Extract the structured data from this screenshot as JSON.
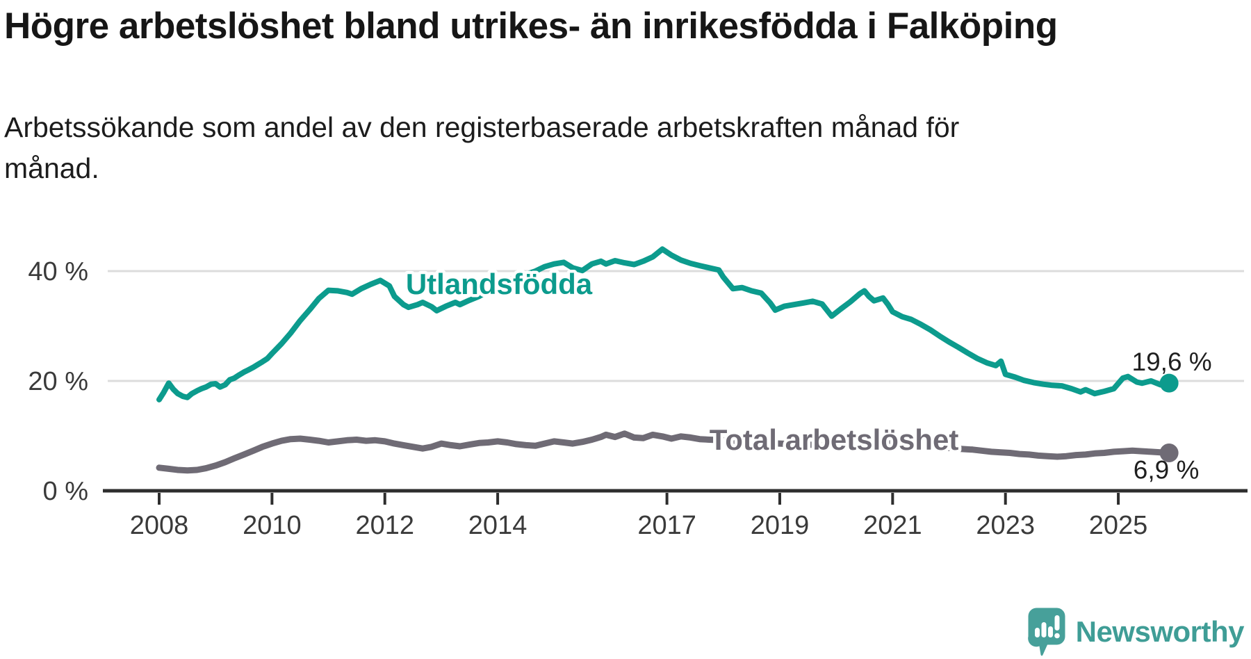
{
  "chart_data": {
    "type": "line",
    "title": "Högre arbetslöshet bland utrikes- än inrikesfödda i Falköping",
    "subtitle": "Arbetssökande som andel av den registerbaserade arbetskraften månad för månad.",
    "grid": "horizontal",
    "legend_position": "inline-labels",
    "x_axis": {
      "ticks": [
        2008,
        2010,
        2012,
        2014,
        2017,
        2019,
        2021,
        2023,
        2025
      ],
      "labels": [
        "2008",
        "2010",
        "2012",
        "2014",
        "2017",
        "2019",
        "2021",
        "2023",
        "2025"
      ],
      "range": [
        2007.5,
        2026.3
      ]
    },
    "y_axis": {
      "ticks": [
        0,
        20,
        40
      ],
      "labels": [
        "0 %",
        "20 %",
        "40 %"
      ],
      "unit": "%",
      "range": [
        0,
        47
      ]
    },
    "series": [
      {
        "name": "Utlandsfödda",
        "color": "#0c9b8d",
        "end_label": "19,6 %",
        "last_value": 19.6,
        "points": [
          [
            2008.0,
            16.6
          ],
          [
            2008.08,
            17.9
          ],
          [
            2008.17,
            19.6
          ],
          [
            2008.25,
            18.5
          ],
          [
            2008.33,
            17.7
          ],
          [
            2008.42,
            17.2
          ],
          [
            2008.5,
            17.0
          ],
          [
            2008.58,
            17.7
          ],
          [
            2008.67,
            18.2
          ],
          [
            2008.75,
            18.6
          ],
          [
            2008.83,
            18.9
          ],
          [
            2008.92,
            19.4
          ],
          [
            2009.0,
            19.5
          ],
          [
            2009.08,
            18.9
          ],
          [
            2009.17,
            19.3
          ],
          [
            2009.25,
            20.2
          ],
          [
            2009.33,
            20.5
          ],
          [
            2009.42,
            21.1
          ],
          [
            2009.5,
            21.6
          ],
          [
            2009.58,
            22.0
          ],
          [
            2009.67,
            22.5
          ],
          [
            2009.75,
            23.0
          ],
          [
            2009.83,
            23.5
          ],
          [
            2009.92,
            24.1
          ],
          [
            2010.0,
            25.0
          ],
          [
            2010.17,
            26.8
          ],
          [
            2010.33,
            28.7
          ],
          [
            2010.5,
            31.0
          ],
          [
            2010.67,
            33.0
          ],
          [
            2010.83,
            35.0
          ],
          [
            2011.0,
            36.5
          ],
          [
            2011.17,
            36.4
          ],
          [
            2011.33,
            36.1
          ],
          [
            2011.42,
            35.8
          ],
          [
            2011.58,
            36.8
          ],
          [
            2011.75,
            37.6
          ],
          [
            2011.92,
            38.3
          ],
          [
            2012.08,
            37.3
          ],
          [
            2012.17,
            35.4
          ],
          [
            2012.33,
            33.9
          ],
          [
            2012.42,
            33.4
          ],
          [
            2012.58,
            33.9
          ],
          [
            2012.67,
            34.3
          ],
          [
            2012.83,
            33.5
          ],
          [
            2012.92,
            32.8
          ],
          [
            2013.08,
            33.6
          ],
          [
            2013.25,
            34.3
          ],
          [
            2013.33,
            33.9
          ],
          [
            2013.5,
            34.7
          ],
          [
            2013.67,
            35.4
          ],
          [
            2013.83,
            36.4
          ],
          [
            2014.0,
            37.4
          ],
          [
            2014.17,
            38.2
          ],
          [
            2014.33,
            38.9
          ],
          [
            2014.5,
            39.4
          ],
          [
            2014.67,
            40.0
          ],
          [
            2014.83,
            40.8
          ],
          [
            2015.0,
            41.3
          ],
          [
            2015.17,
            41.6
          ],
          [
            2015.33,
            40.6
          ],
          [
            2015.5,
            40.1
          ],
          [
            2015.67,
            41.3
          ],
          [
            2015.83,
            41.8
          ],
          [
            2015.92,
            41.3
          ],
          [
            2016.08,
            41.9
          ],
          [
            2016.25,
            41.5
          ],
          [
            2016.42,
            41.2
          ],
          [
            2016.58,
            41.8
          ],
          [
            2016.75,
            42.6
          ],
          [
            2016.92,
            44.0
          ],
          [
            2017.08,
            42.9
          ],
          [
            2017.25,
            42.0
          ],
          [
            2017.42,
            41.4
          ],
          [
            2017.58,
            41.0
          ],
          [
            2017.75,
            40.6
          ],
          [
            2017.92,
            40.2
          ],
          [
            2018.0,
            38.9
          ],
          [
            2018.17,
            36.8
          ],
          [
            2018.33,
            37.0
          ],
          [
            2018.5,
            36.4
          ],
          [
            2018.67,
            36.0
          ],
          [
            2018.83,
            34.2
          ],
          [
            2018.92,
            32.9
          ],
          [
            2019.08,
            33.6
          ],
          [
            2019.25,
            33.9
          ],
          [
            2019.42,
            34.2
          ],
          [
            2019.58,
            34.5
          ],
          [
            2019.75,
            34.0
          ],
          [
            2019.92,
            31.8
          ],
          [
            2020.08,
            33.1
          ],
          [
            2020.25,
            34.4
          ],
          [
            2020.42,
            35.9
          ],
          [
            2020.5,
            36.4
          ],
          [
            2020.58,
            35.4
          ],
          [
            2020.67,
            34.6
          ],
          [
            2020.83,
            35.1
          ],
          [
            2020.92,
            33.9
          ],
          [
            2021.0,
            32.6
          ],
          [
            2021.17,
            31.7
          ],
          [
            2021.33,
            31.2
          ],
          [
            2021.5,
            30.3
          ],
          [
            2021.67,
            29.3
          ],
          [
            2021.83,
            28.2
          ],
          [
            2022.0,
            27.1
          ],
          [
            2022.17,
            26.1
          ],
          [
            2022.33,
            25.1
          ],
          [
            2022.5,
            24.1
          ],
          [
            2022.67,
            23.3
          ],
          [
            2022.83,
            22.8
          ],
          [
            2022.92,
            23.6
          ],
          [
            2023.0,
            21.2
          ],
          [
            2023.17,
            20.7
          ],
          [
            2023.33,
            20.1
          ],
          [
            2023.5,
            19.7
          ],
          [
            2023.67,
            19.4
          ],
          [
            2023.83,
            19.2
          ],
          [
            2024.0,
            19.1
          ],
          [
            2024.17,
            18.6
          ],
          [
            2024.33,
            18.0
          ],
          [
            2024.42,
            18.4
          ],
          [
            2024.58,
            17.7
          ],
          [
            2024.75,
            18.1
          ],
          [
            2024.92,
            18.6
          ],
          [
            2025.08,
            20.5
          ],
          [
            2025.17,
            20.8
          ],
          [
            2025.33,
            19.8
          ],
          [
            2025.42,
            19.6
          ],
          [
            2025.58,
            20.0
          ],
          [
            2025.75,
            19.3
          ],
          [
            2025.9,
            19.6
          ]
        ]
      },
      {
        "name": "Total arbetslöshet",
        "color": "#6f6b75",
        "end_label": "6,9 %",
        "last_value": 6.9,
        "points": [
          [
            2008.0,
            4.2
          ],
          [
            2008.17,
            4.0
          ],
          [
            2008.33,
            3.8
          ],
          [
            2008.5,
            3.7
          ],
          [
            2008.67,
            3.8
          ],
          [
            2008.83,
            4.1
          ],
          [
            2009.0,
            4.6
          ],
          [
            2009.17,
            5.2
          ],
          [
            2009.33,
            5.9
          ],
          [
            2009.5,
            6.6
          ],
          [
            2009.67,
            7.3
          ],
          [
            2009.83,
            8.0
          ],
          [
            2010.0,
            8.6
          ],
          [
            2010.17,
            9.1
          ],
          [
            2010.33,
            9.4
          ],
          [
            2010.5,
            9.5
          ],
          [
            2010.67,
            9.3
          ],
          [
            2010.83,
            9.1
          ],
          [
            2011.0,
            8.8
          ],
          [
            2011.17,
            9.0
          ],
          [
            2011.33,
            9.2
          ],
          [
            2011.5,
            9.3
          ],
          [
            2011.67,
            9.1
          ],
          [
            2011.83,
            9.2
          ],
          [
            2012.0,
            9.0
          ],
          [
            2012.17,
            8.6
          ],
          [
            2012.33,
            8.3
          ],
          [
            2012.5,
            8.0
          ],
          [
            2012.67,
            7.7
          ],
          [
            2012.83,
            8.0
          ],
          [
            2013.0,
            8.6
          ],
          [
            2013.17,
            8.3
          ],
          [
            2013.33,
            8.1
          ],
          [
            2013.5,
            8.4
          ],
          [
            2013.67,
            8.7
          ],
          [
            2013.83,
            8.8
          ],
          [
            2014.0,
            9.0
          ],
          [
            2014.17,
            8.8
          ],
          [
            2014.33,
            8.5
          ],
          [
            2014.5,
            8.3
          ],
          [
            2014.67,
            8.2
          ],
          [
            2014.83,
            8.6
          ],
          [
            2015.0,
            9.0
          ],
          [
            2015.17,
            8.8
          ],
          [
            2015.33,
            8.6
          ],
          [
            2015.5,
            8.9
          ],
          [
            2015.67,
            9.3
          ],
          [
            2015.83,
            9.8
          ],
          [
            2015.92,
            10.2
          ],
          [
            2016.08,
            9.8
          ],
          [
            2016.25,
            10.4
          ],
          [
            2016.42,
            9.7
          ],
          [
            2016.58,
            9.6
          ],
          [
            2016.75,
            10.2
          ],
          [
            2016.92,
            9.9
          ],
          [
            2017.08,
            9.5
          ],
          [
            2017.25,
            9.9
          ],
          [
            2017.42,
            9.7
          ],
          [
            2017.58,
            9.4
          ],
          [
            2017.75,
            9.3
          ],
          [
            2018.0,
            9.2
          ],
          [
            2018.25,
            9.0
          ],
          [
            2018.5,
            8.8
          ],
          [
            2018.75,
            8.7
          ],
          [
            2019.0,
            8.6
          ],
          [
            2019.25,
            8.5
          ],
          [
            2019.5,
            8.4
          ],
          [
            2019.75,
            8.3
          ],
          [
            2020.0,
            8.5
          ],
          [
            2020.25,
            9.2
          ],
          [
            2020.5,
            9.6
          ],
          [
            2020.75,
            9.3
          ],
          [
            2021.0,
            9.0
          ],
          [
            2021.25,
            8.7
          ],
          [
            2021.5,
            8.4
          ],
          [
            2021.75,
            8.1
          ],
          [
            2022.0,
            7.8
          ],
          [
            2022.25,
            7.6
          ],
          [
            2022.42,
            7.5
          ],
          [
            2022.58,
            7.3
          ],
          [
            2022.75,
            7.1
          ],
          [
            2022.92,
            7.0
          ],
          [
            2023.08,
            6.9
          ],
          [
            2023.25,
            6.7
          ],
          [
            2023.42,
            6.6
          ],
          [
            2023.58,
            6.4
          ],
          [
            2023.75,
            6.3
          ],
          [
            2023.92,
            6.2
          ],
          [
            2024.08,
            6.3
          ],
          [
            2024.25,
            6.5
          ],
          [
            2024.42,
            6.6
          ],
          [
            2024.58,
            6.8
          ],
          [
            2024.75,
            6.9
          ],
          [
            2024.92,
            7.1
          ],
          [
            2025.08,
            7.2
          ],
          [
            2025.25,
            7.3
          ],
          [
            2025.42,
            7.2
          ],
          [
            2025.58,
            7.1
          ],
          [
            2025.75,
            7.0
          ],
          [
            2025.9,
            6.9
          ]
        ]
      }
    ]
  },
  "footer": {
    "brand": "Newsworthy"
  },
  "colors": {
    "background": "#ffffff",
    "title_text": "#161616",
    "accent_teal": "#0c9b8d",
    "line_gray": "#6f6b75",
    "grid": "#dcdcdc",
    "axis": "#2e2e2e",
    "tick_text": "#3a3a3a",
    "annotation_text": "#1f1f1f",
    "logo_teal": "#3f9d96",
    "logo_icon": "#47a09a"
  }
}
